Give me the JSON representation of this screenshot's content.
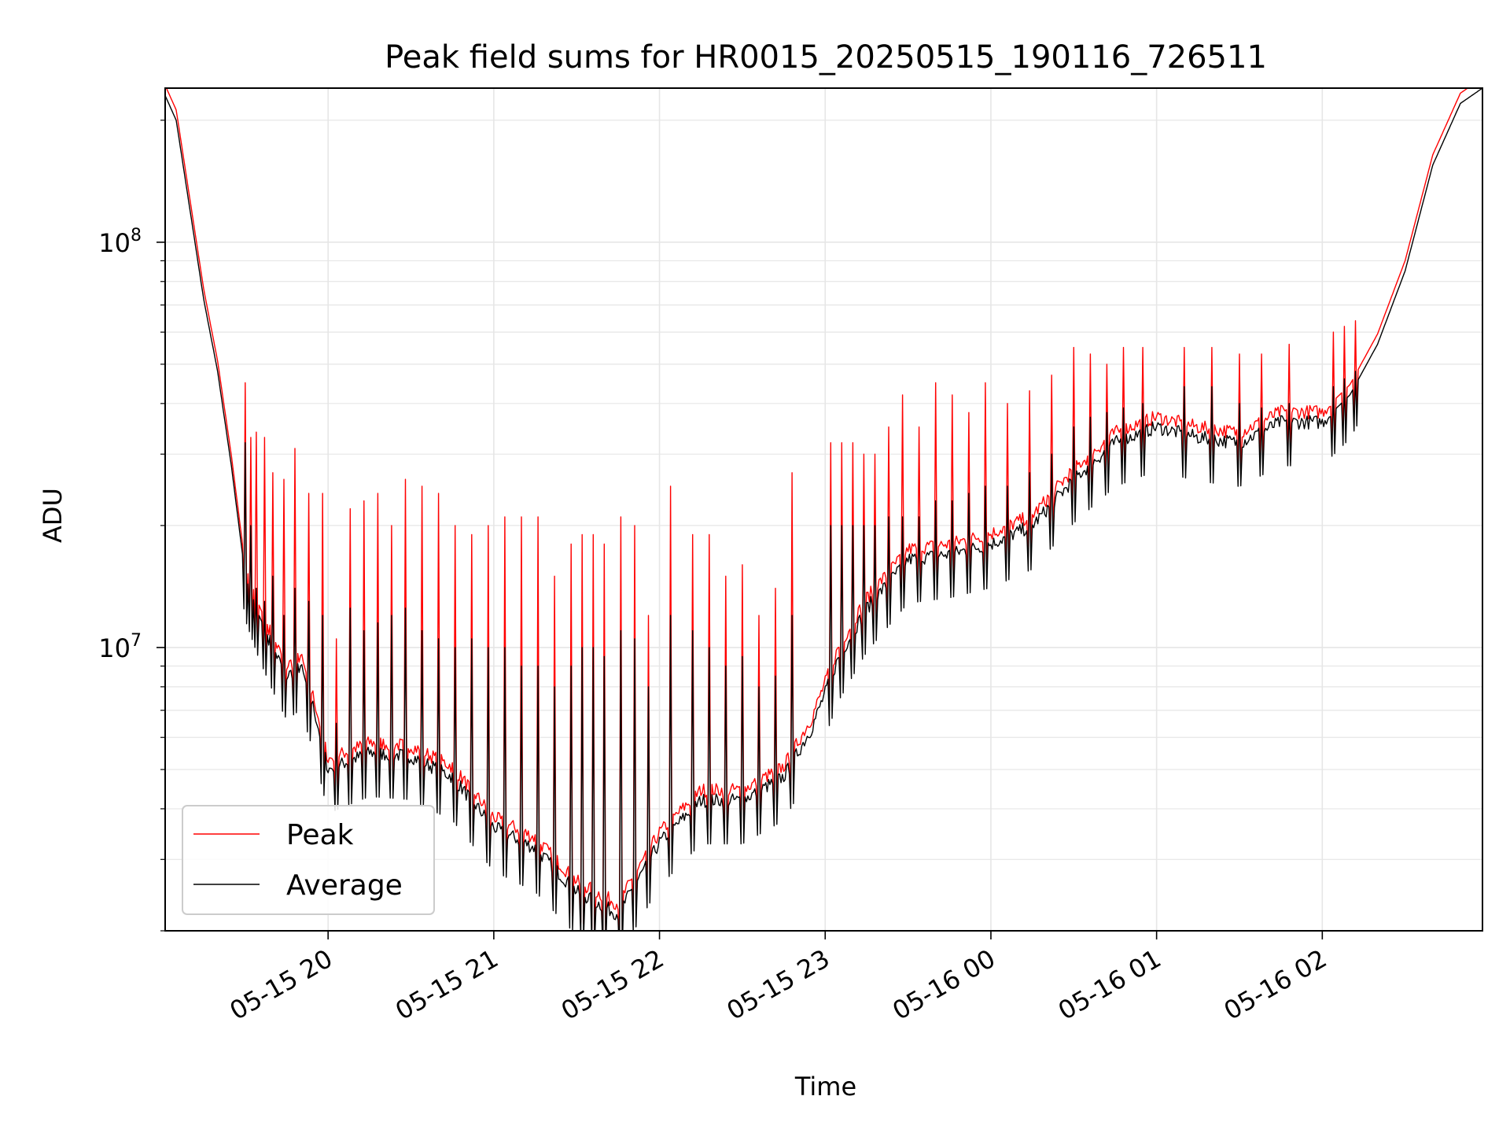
{
  "chart_data": {
    "type": "line",
    "title": "Peak field sums for HR0015_20250515_190116_726511",
    "xlabel": "Time",
    "ylabel": "ADU",
    "y_scale": "log",
    "ylim": [
      2000000,
      240000000
    ],
    "xlim": [
      "2025-05-15 19:01",
      "2025-05-16 02:58"
    ],
    "grid": true,
    "legend_position": "lower-left",
    "x_ticks": [
      "05-15 20",
      "05-15 21",
      "05-15 22",
      "05-15 23",
      "05-16 00",
      "05-16 01",
      "05-16 02"
    ],
    "x_tick_times": [
      "2025-05-15 20:00",
      "2025-05-15 21:00",
      "2025-05-15 22:00",
      "2025-05-15 23:00",
      "2025-05-16 00:00",
      "2025-05-16 01:00",
      "2025-05-16 02:00"
    ],
    "y_major_ticks": [
      {
        "value": 10000000,
        "base": "10",
        "exp": "7"
      },
      {
        "value": 100000000,
        "base": "10",
        "exp": "8"
      }
    ],
    "baseline": {
      "x": [
        "2025-05-15 19:01",
        "2025-05-15 19:05",
        "2025-05-15 19:10",
        "2025-05-15 19:15",
        "2025-05-15 19:20",
        "2025-05-15 19:25",
        "2025-05-15 19:30",
        "2025-05-15 19:35",
        "2025-05-15 19:40",
        "2025-05-15 19:45",
        "2025-05-15 19:50",
        "2025-05-15 19:55",
        "2025-05-15 20:00",
        "2025-05-15 20:15",
        "2025-05-15 20:30",
        "2025-05-15 20:45",
        "2025-05-15 21:00",
        "2025-05-15 21:15",
        "2025-05-15 21:30",
        "2025-05-15 21:45",
        "2025-05-15 22:00",
        "2025-05-15 22:15",
        "2025-05-15 22:30",
        "2025-05-15 22:45",
        "2025-05-15 22:55",
        "2025-05-15 23:05",
        "2025-05-15 23:15",
        "2025-05-15 23:30",
        "2025-05-15 23:45",
        "2025-05-16 00:00",
        "2025-05-16 00:15",
        "2025-05-16 00:30",
        "2025-05-16 00:45",
        "2025-05-16 01:00",
        "2025-05-16 01:15",
        "2025-05-16 01:30",
        "2025-05-16 01:45",
        "2025-05-16 02:00",
        "2025-05-16 02:10",
        "2025-05-16 02:20",
        "2025-05-16 02:30",
        "2025-05-16 02:40",
        "2025-05-16 02:50",
        "2025-05-16 02:58"
      ],
      "average": [
        230000000,
        200000000,
        120000000,
        72000000,
        48000000,
        28000000,
        15000000,
        12000000,
        10000000,
        8500000,
        9000000,
        7000000,
        5000000,
        5500000,
        5400000,
        4800000,
        3600000,
        3200000,
        2500000,
        2200000,
        3300000,
        4200000,
        4200000,
        4800000,
        6300000,
        9500000,
        12500000,
        16500000,
        17000000,
        18000000,
        20000000,
        26000000,
        32000000,
        35000000,
        33000000,
        32000000,
        36000000,
        36000000,
        42000000,
        56000000,
        85000000,
        155000000,
        220000000,
        240000000
      ],
      "peak_ratio": 1.06
    },
    "spikes": {
      "x": [
        "2025-05-15 19:30",
        "2025-05-15 19:32",
        "2025-05-15 19:34",
        "2025-05-15 19:37",
        "2025-05-15 19:40",
        "2025-05-15 19:44",
        "2025-05-15 19:48",
        "2025-05-15 19:53",
        "2025-05-15 19:58",
        "2025-05-15 20:03",
        "2025-05-15 20:08",
        "2025-05-15 20:13",
        "2025-05-15 20:18",
        "2025-05-15 20:23",
        "2025-05-15 20:28",
        "2025-05-15 20:34",
        "2025-05-15 20:40",
        "2025-05-15 20:46",
        "2025-05-15 20:52",
        "2025-05-15 20:58",
        "2025-05-15 21:04",
        "2025-05-15 21:10",
        "2025-05-15 21:16",
        "2025-05-15 21:22",
        "2025-05-15 21:28",
        "2025-05-15 21:32",
        "2025-05-15 21:36",
        "2025-05-15 21:40",
        "2025-05-15 21:46",
        "2025-05-15 21:51",
        "2025-05-15 21:56",
        "2025-05-15 22:04",
        "2025-05-15 22:12",
        "2025-05-15 22:18",
        "2025-05-15 22:24",
        "2025-05-15 22:30",
        "2025-05-15 22:36",
        "2025-05-15 22:42",
        "2025-05-15 22:48",
        "2025-05-15 23:02",
        "2025-05-15 23:06",
        "2025-05-15 23:10",
        "2025-05-15 23:14",
        "2025-05-15 23:18",
        "2025-05-15 23:23",
        "2025-05-15 23:28",
        "2025-05-15 23:34",
        "2025-05-15 23:40",
        "2025-05-15 23:46",
        "2025-05-15 23:52",
        "2025-05-15 23:58",
        "2025-05-16 00:06",
        "2025-05-16 00:14",
        "2025-05-16 00:22",
        "2025-05-16 00:30",
        "2025-05-16 00:36",
        "2025-05-16 00:42",
        "2025-05-16 00:48",
        "2025-05-16 00:55",
        "2025-05-16 01:10",
        "2025-05-16 01:20",
        "2025-05-16 01:30",
        "2025-05-16 01:38",
        "2025-05-16 01:48",
        "2025-05-16 02:04",
        "2025-05-16 02:08",
        "2025-05-16 02:12"
      ],
      "peak": [
        45000000,
        33000000,
        34000000,
        33000000,
        27000000,
        26000000,
        31000000,
        24000000,
        24000000,
        10500000,
        22000000,
        23000000,
        24000000,
        20000000,
        26000000,
        25000000,
        24000000,
        20000000,
        19000000,
        20000000,
        21000000,
        21000000,
        21000000,
        15000000,
        18000000,
        19000000,
        19000000,
        18000000,
        21000000,
        20000000,
        12000000,
        25000000,
        19000000,
        19000000,
        15000000,
        16000000,
        12000000,
        14000000,
        27000000,
        32000000,
        32000000,
        32000000,
        30000000,
        30000000,
        35000000,
        42000000,
        35000000,
        45000000,
        42000000,
        38000000,
        45000000,
        40000000,
        43000000,
        47000000,
        55000000,
        53000000,
        50000000,
        55000000,
        55000000,
        55000000,
        55000000,
        53000000,
        53000000,
        56000000,
        60000000,
        62000000,
        64000000
      ],
      "average": [
        32000000,
        20000000,
        14000000,
        13000000,
        15000000,
        12000000,
        14000000,
        13000000,
        12000000,
        6500000,
        12500000,
        11000000,
        11500000,
        12000000,
        12500000,
        11000000,
        10500000,
        10000000,
        10500000,
        10000000,
        10000000,
        9000000,
        9000000,
        8000000,
        9000000,
        10000000,
        10000000,
        9500000,
        11000000,
        10500000,
        8000000,
        12000000,
        11000000,
        10000000,
        9000000,
        9500000,
        8000000,
        8500000,
        12000000,
        20000000,
        20000000,
        20000000,
        20000000,
        20000000,
        21000000,
        21000000,
        21000000,
        23000000,
        23000000,
        24000000,
        25000000,
        25000000,
        27000000,
        30000000,
        35000000,
        37000000,
        38000000,
        39000000,
        40000000,
        44000000,
        44000000,
        40000000,
        39000000,
        40000000,
        44000000,
        46000000,
        48000000
      ]
    },
    "series": [
      {
        "name": "Peak",
        "color": "#ff0000"
      },
      {
        "name": "Average",
        "color": "#000000"
      }
    ]
  }
}
